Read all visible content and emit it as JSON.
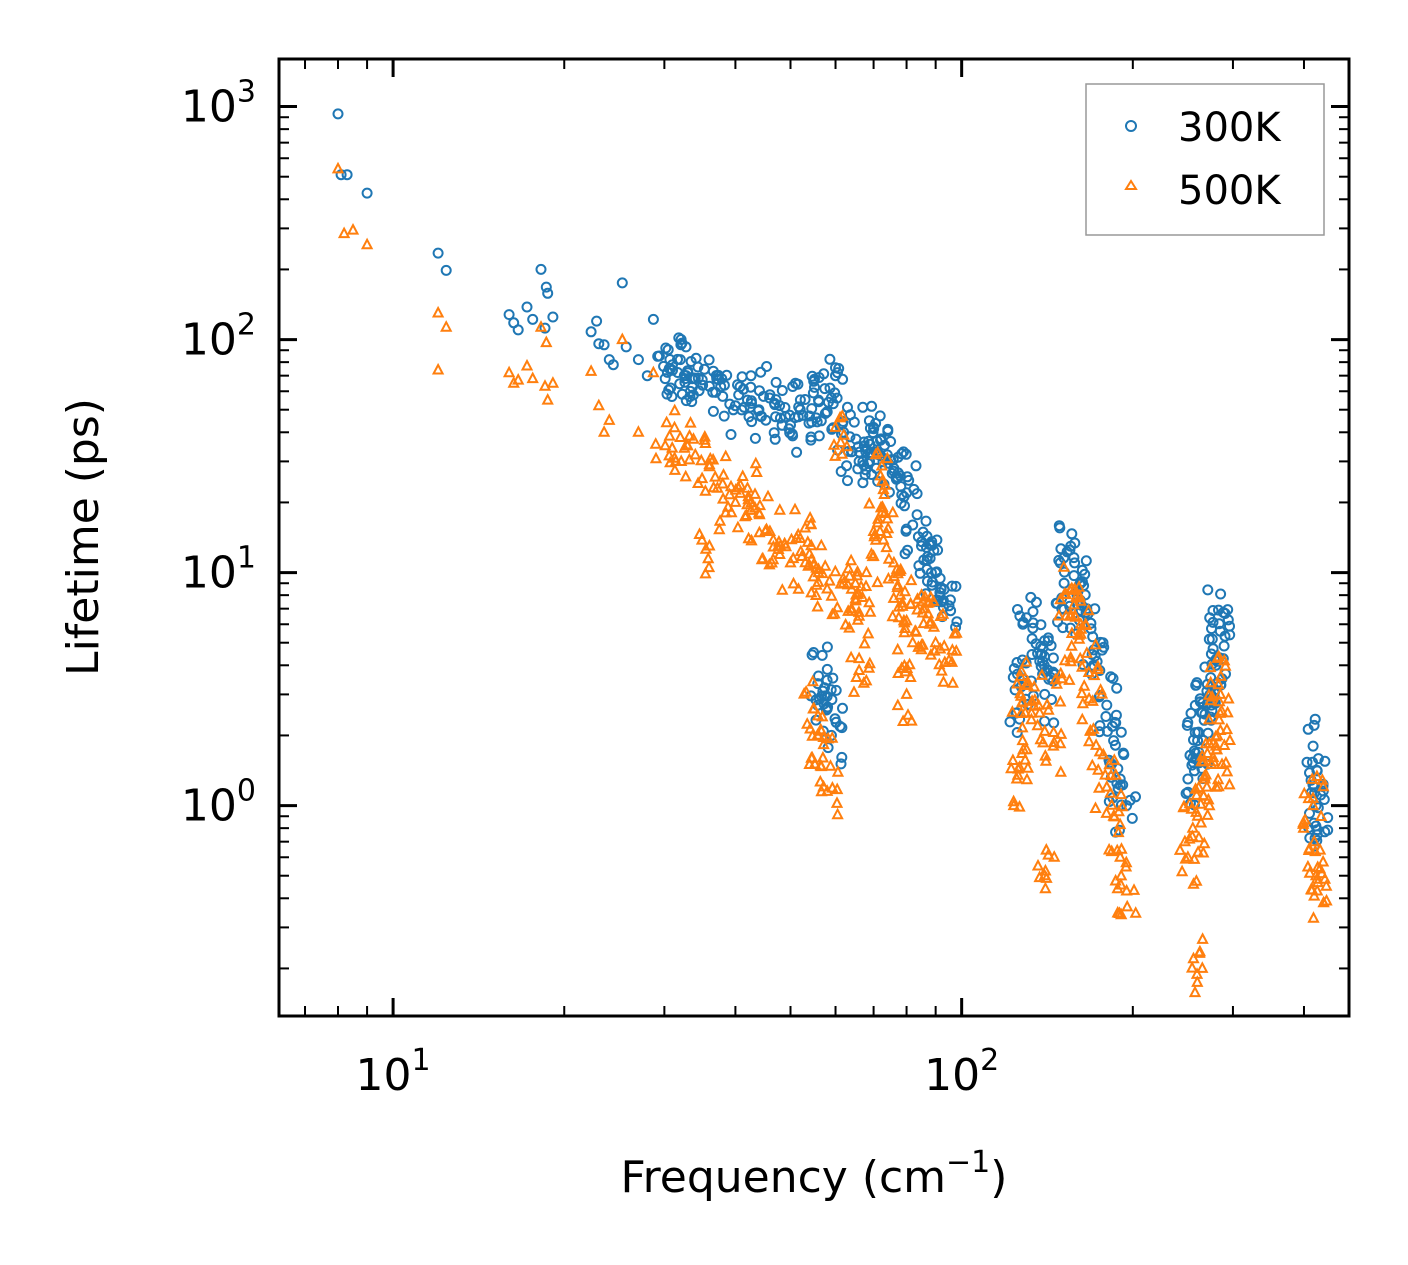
{
  "chart_data": {
    "type": "scatter",
    "xscale": "log",
    "yscale": "log",
    "xlabel": "Frequency (cm",
    "xlabel_sup": "−1",
    "xlabel_end": ")",
    "ylabel": "Lifetime (ps)",
    "xlim": [
      6.3,
      480
    ],
    "ylim": [
      0.125,
      1600
    ],
    "x_ticks": [
      {
        "value": 10,
        "base": "10",
        "exp": "1"
      },
      {
        "value": 100,
        "base": "10",
        "exp": "2"
      }
    ],
    "y_ticks": [
      {
        "value": 1,
        "base": "10",
        "exp": "0"
      },
      {
        "value": 10,
        "base": "10",
        "exp": "1"
      },
      {
        "value": 100,
        "base": "10",
        "exp": "2"
      },
      {
        "value": 1000,
        "base": "10",
        "exp": "3"
      }
    ],
    "legend_position": "top-right",
    "series": [
      {
        "name": "300K",
        "marker": "circle",
        "color": "#1f77b4",
        "points": [
          [
            8.0,
            930
          ],
          [
            8.1,
            510
          ],
          [
            8.3,
            510
          ],
          [
            9.0,
            425
          ],
          [
            12.0,
            235
          ],
          [
            12.4,
            198
          ],
          [
            16.0,
            128
          ],
          [
            16.3,
            118
          ],
          [
            16.6,
            110
          ],
          [
            17.2,
            138
          ],
          [
            17.6,
            122
          ],
          [
            18.2,
            200
          ],
          [
            18.6,
            168
          ],
          [
            18.7,
            158
          ],
          [
            18.5,
            112
          ],
          [
            19.1,
            125
          ],
          [
            22.3,
            108
          ],
          [
            22.8,
            120
          ],
          [
            23.0,
            96
          ],
          [
            23.5,
            95
          ],
          [
            24.0,
            82
          ],
          [
            24.4,
            78
          ],
          [
            25.3,
            175
          ],
          [
            25.7,
            93
          ],
          [
            27.0,
            82
          ],
          [
            28.0,
            70
          ],
          [
            28.7,
            122
          ],
          [
            29.4,
            85
          ],
          [
            30.1,
            68
          ],
          [
            31.0,
            78
          ],
          [
            32.0,
            82
          ],
          [
            33.0,
            72
          ],
          [
            34.0,
            68
          ],
          [
            36.0,
            63
          ],
          [
            38.0,
            57
          ],
          [
            40.0,
            52
          ],
          [
            42.0,
            55
          ],
          [
            44.0,
            50
          ],
          [
            46.0,
            58
          ],
          [
            48.0,
            46
          ],
          [
            50.0,
            43
          ],
          [
            52.0,
            50
          ],
          [
            54.0,
            47
          ],
          [
            56.0,
            55
          ],
          [
            58.0,
            49
          ],
          [
            60.0,
            70
          ],
          [
            62.0,
            40
          ],
          [
            64.0,
            33
          ],
          [
            66.0,
            30
          ],
          [
            68.0,
            34
          ],
          [
            70.0,
            42
          ],
          [
            72.0,
            37
          ],
          [
            74.0,
            32
          ],
          [
            76.0,
            28
          ],
          [
            78.0,
            26
          ],
          [
            80.0,
            22
          ],
          [
            82.0,
            16
          ],
          [
            85.0,
            13
          ],
          [
            88.0,
            11.5
          ],
          [
            90.0,
            10
          ],
          [
            92.0,
            8.5
          ],
          [
            95.0,
            7.2
          ],
          [
            56.0,
            3.6
          ],
          [
            57.0,
            3.1
          ],
          [
            58.0,
            2.6
          ],
          [
            59.0,
            2.0
          ],
          [
            125.0,
            2.5
          ],
          [
            128.0,
            3.5
          ],
          [
            130.0,
            6.4
          ],
          [
            133.0,
            5.2
          ],
          [
            136.0,
            4.5
          ],
          [
            140.0,
            3.0
          ],
          [
            145.0,
            4.3
          ],
          [
            150.0,
            7.0
          ],
          [
            155.0,
            12.5
          ],
          [
            158.0,
            11.0
          ],
          [
            162.0,
            9.0
          ],
          [
            166.0,
            7.0
          ],
          [
            170.0,
            5.3
          ],
          [
            175.0,
            3.8
          ],
          [
            180.0,
            2.7
          ],
          [
            185.0,
            1.9
          ],
          [
            190.0,
            1.3
          ],
          [
            195.0,
            1.0
          ],
          [
            250.0,
            1.3
          ],
          [
            255.0,
            1.6
          ],
          [
            260.0,
            1.9
          ],
          [
            265.0,
            2.5
          ],
          [
            270.0,
            3.1
          ],
          [
            275.0,
            2.7
          ],
          [
            280.0,
            4.0
          ],
          [
            283.0,
            6.9
          ],
          [
            285.0,
            5.6
          ],
          [
            287.0,
            3.5
          ],
          [
            415.0,
            1.8
          ],
          [
            417.0,
            1.2
          ],
          [
            420.0,
            1.0
          ],
          [
            422.0,
            0.75
          ]
        ]
      },
      {
        "name": "500K",
        "marker": "triangle",
        "color": "#ff7f0e",
        "points": [
          [
            8.0,
            540
          ],
          [
            8.2,
            285
          ],
          [
            8.5,
            295
          ],
          [
            9.0,
            255
          ],
          [
            12.0,
            130
          ],
          [
            12.4,
            113
          ],
          [
            12.0,
            74
          ],
          [
            16.0,
            72
          ],
          [
            16.3,
            65
          ],
          [
            16.6,
            67
          ],
          [
            17.2,
            77
          ],
          [
            17.6,
            68
          ],
          [
            18.2,
            113
          ],
          [
            18.6,
            97
          ],
          [
            18.5,
            63
          ],
          [
            19.1,
            65
          ],
          [
            18.7,
            55
          ],
          [
            22.3,
            73
          ],
          [
            23.0,
            52
          ],
          [
            23.5,
            40
          ],
          [
            24.0,
            45
          ],
          [
            25.3,
            100
          ],
          [
            27.0,
            40
          ],
          [
            28.7,
            72
          ],
          [
            30.1,
            35
          ],
          [
            32.0,
            38
          ],
          [
            34.0,
            32
          ],
          [
            36.0,
            29
          ],
          [
            38.0,
            24
          ],
          [
            40.0,
            20
          ],
          [
            42.0,
            23
          ],
          [
            44.0,
            18
          ],
          [
            46.0,
            15
          ],
          [
            48.0,
            13
          ],
          [
            50.0,
            11
          ],
          [
            52.0,
            14
          ],
          [
            54.0,
            12
          ],
          [
            56.0,
            10
          ],
          [
            58.0,
            8.5
          ],
          [
            60.0,
            42
          ],
          [
            62.0,
            9
          ],
          [
            64.0,
            7
          ],
          [
            66.0,
            6.5
          ],
          [
            68.0,
            10
          ],
          [
            70.0,
            15
          ],
          [
            72.0,
            26
          ],
          [
            74.0,
            17
          ],
          [
            76.0,
            11
          ],
          [
            78.0,
            8
          ],
          [
            80.0,
            6.2
          ],
          [
            82.0,
            5
          ],
          [
            85.0,
            8
          ],
          [
            88.0,
            6
          ],
          [
            90.0,
            5
          ],
          [
            95.0,
            4.2
          ],
          [
            36.0,
            13
          ],
          [
            55.0,
            2.6
          ],
          [
            56.0,
            2.0
          ],
          [
            57.0,
            1.6
          ],
          [
            58.0,
            1.15
          ],
          [
            66.0,
            3.8
          ],
          [
            80.0,
            3.0
          ],
          [
            125.0,
            1.3
          ],
          [
            128.0,
            1.9
          ],
          [
            130.0,
            3.3
          ],
          [
            133.0,
            2.8
          ],
          [
            136.0,
            2.2
          ],
          [
            140.0,
            0.5
          ],
          [
            145.0,
            1.8
          ],
          [
            150.0,
            3.5
          ],
          [
            155.0,
            6.5
          ],
          [
            158.0,
            8.5
          ],
          [
            162.0,
            6.0
          ],
          [
            166.0,
            4.5
          ],
          [
            170.0,
            2.8
          ],
          [
            175.0,
            1.7
          ],
          [
            180.0,
            1.2
          ],
          [
            185.0,
            0.9
          ],
          [
            190.0,
            0.6
          ],
          [
            195.0,
            0.43
          ],
          [
            250.0,
            0.6
          ],
          [
            255.0,
            0.8
          ],
          [
            260.0,
            0.9
          ],
          [
            265.0,
            0.2
          ],
          [
            270.0,
            1.2
          ],
          [
            275.0,
            1.5
          ],
          [
            280.0,
            1.8
          ],
          [
            283.0,
            3.3
          ],
          [
            285.0,
            3.0
          ],
          [
            287.0,
            1.5
          ],
          [
            415.0,
            1.0
          ],
          [
            417.0,
            0.7
          ],
          [
            420.0,
            0.5
          ],
          [
            422.0,
            0.43
          ]
        ]
      }
    ]
  }
}
